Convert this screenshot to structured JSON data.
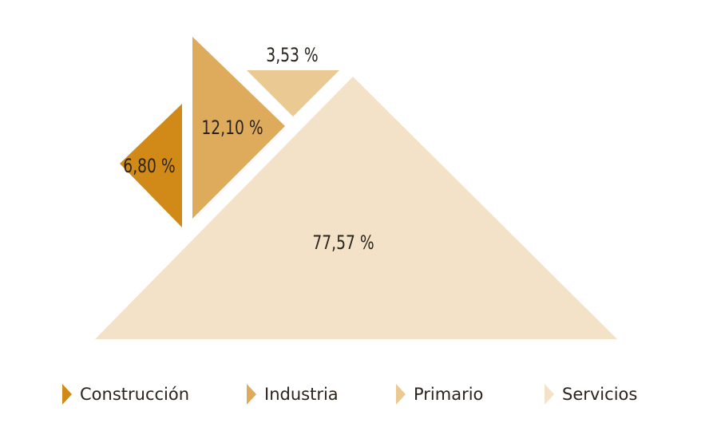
{
  "chart_data": {
    "type": "pie",
    "title": "",
    "unit": "%",
    "series": [
      {
        "name": "Construcción",
        "value": 6.8,
        "label": "6,80 %",
        "color": "#d18a17"
      },
      {
        "name": "Industria",
        "value": 12.1,
        "label": "12,10 %",
        "color": "#deaa5c"
      },
      {
        "name": "Primario",
        "value": 3.53,
        "label": "3,53 %",
        "color": "#ebc993"
      },
      {
        "name": "Servicios",
        "value": 77.57,
        "label": "77,57 %",
        "color": "#f3e2c7"
      }
    ],
    "legend_position": "bottom"
  },
  "legend": {
    "items": [
      {
        "label": "Construcción",
        "color": "#d18a17"
      },
      {
        "label": "Industria",
        "color": "#deaa5c"
      },
      {
        "label": "Primario",
        "color": "#ebc993"
      },
      {
        "label": "Servicios",
        "color": "#f3e2c7"
      }
    ]
  }
}
